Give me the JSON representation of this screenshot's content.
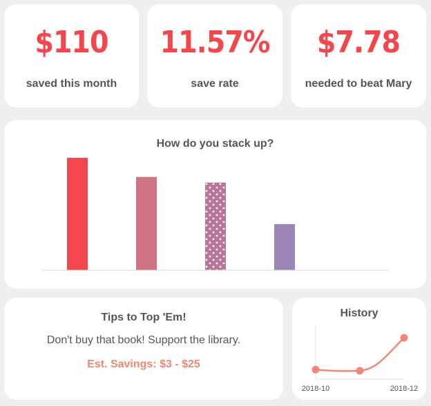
{
  "stats": [
    {
      "value": "$110",
      "label": "saved this month"
    },
    {
      "value": "11.57%",
      "label": "save rate"
    },
    {
      "value": "$7.78",
      "label": "needed to beat Mary"
    }
  ],
  "tips": {
    "title": "Tips to Top 'Em!",
    "text": "Don't buy that book! Support the library.",
    "savings": "Est. Savings: $3 - $25"
  },
  "colors": {
    "accent": "#f4474d",
    "savings": "#f0876f",
    "history_line": "#f0877a"
  },
  "chart_data": [
    {
      "type": "bar",
      "title": "How do you stack up?",
      "categories": [
        "",
        "",
        "",
        ""
      ],
      "values": [
        100,
        83,
        78,
        41
      ],
      "ylim": [
        0,
        100
      ],
      "bar_colors": [
        "#f4474d",
        "#cf7281",
        "#b97797",
        "#9c86b7"
      ],
      "bar_patterns": [
        "solid",
        "solid",
        "dots",
        "solid"
      ],
      "grid": false
    },
    {
      "type": "line",
      "title": "History",
      "x": [
        "2018-10",
        "2018-11",
        "2018-12"
      ],
      "x_tick_labels": [
        "2018-10",
        "2018-12"
      ],
      "y": [
        110,
        108,
        170
      ],
      "grid": false
    }
  ]
}
